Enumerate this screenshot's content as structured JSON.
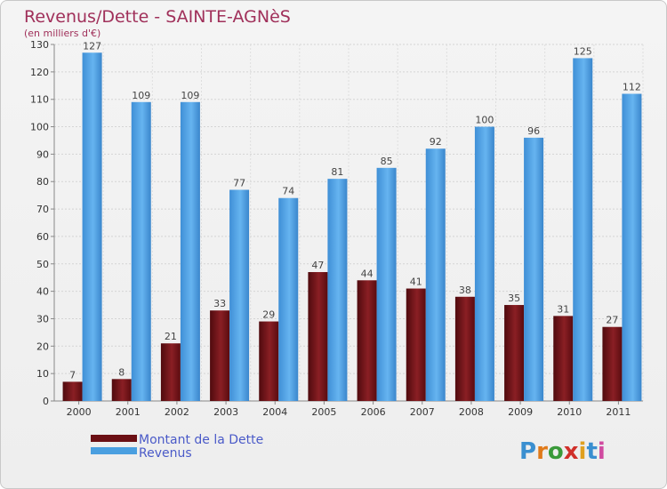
{
  "title": "Revenus/Dette - SAINTE-AGNèS",
  "subtitle": "(en milliers d'€)",
  "brand": "Proxiti",
  "colors": {
    "dette": "#6b0f14",
    "revenus": "#4a9fe0"
  },
  "chart_data": {
    "type": "bar",
    "categories": [
      "2000",
      "2001",
      "2002",
      "2003",
      "2004",
      "2005",
      "2006",
      "2007",
      "2008",
      "2009",
      "2010",
      "2011"
    ],
    "series": [
      {
        "name": "Montant de la Dette",
        "values": [
          7,
          8,
          21,
          33,
          29,
          47,
          44,
          41,
          38,
          35,
          31,
          27
        ]
      },
      {
        "name": "Revenus",
        "values": [
          127,
          109,
          109,
          77,
          74,
          81,
          85,
          92,
          100,
          96,
          125,
          112
        ]
      }
    ],
    "ylim": [
      0,
      130
    ],
    "yticks": [
      0,
      10,
      20,
      30,
      40,
      50,
      60,
      70,
      80,
      90,
      100,
      110,
      120,
      130
    ],
    "grid": true,
    "legend": "bottom-left"
  }
}
